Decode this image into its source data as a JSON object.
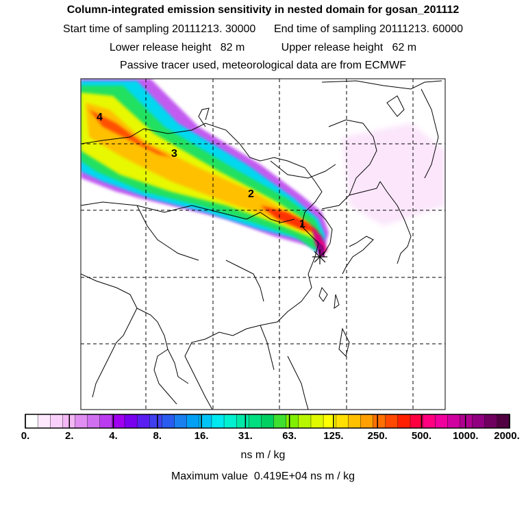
{
  "header": {
    "title": "Column-integrated emission sensitivity in nested domain for gosan_201112",
    "line2": "Start time of sampling 20111213. 30000      End time of sampling 20111213. 60000",
    "line3": "Lower release height   82 m            Upper release height   62 m",
    "line4": "Passive tracer used, meteorological data are from ECMWF"
  },
  "map": {
    "plume_labels": [
      "1",
      "2",
      "3",
      "4"
    ],
    "receptor_marker": "star-marker"
  },
  "colorbar": {
    "tick_labels": [
      "0.",
      "2.",
      "4.",
      "8.",
      "16.",
      "31.",
      "63.",
      "125.",
      "250.",
      "500.",
      "1000.",
      "2000."
    ],
    "colors": [
      "#ffffff",
      "#fde8fd",
      "#f9d0f9",
      "#f3b8f5",
      "#e08ef2",
      "#d070f0",
      "#bb3cf0",
      "#a000f0",
      "#7a00f0",
      "#5a1ef0",
      "#4040f0",
      "#2a5cf0",
      "#1a80f0",
      "#00a0f5",
      "#00c4f8",
      "#00e8f0",
      "#00f0d0",
      "#00e8a8",
      "#00e080",
      "#00d060",
      "#40e030",
      "#80f000",
      "#b8f500",
      "#e0f800",
      "#ffff00",
      "#ffe000",
      "#ffc000",
      "#ffa000",
      "#ff7000",
      "#ff4800",
      "#ff2000",
      "#ff0040",
      "#ff0080",
      "#f0009c",
      "#d000a0",
      "#b00090",
      "#900080",
      "#700060",
      "#500040"
    ],
    "units": "ns m / kg"
  },
  "footer": {
    "max_value": "Maximum value  0.419E+04 ns m / kg"
  }
}
